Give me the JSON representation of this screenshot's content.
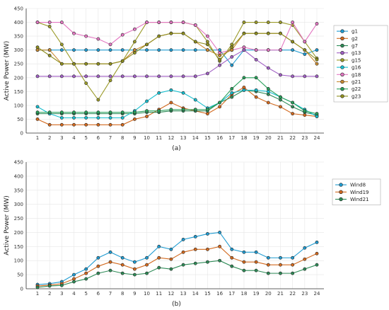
{
  "chart_data": [
    {
      "type": "line",
      "caption": "(a)",
      "title": "",
      "xlabel": "",
      "ylabel": "Active Power (MW)",
      "x": [
        1,
        2,
        3,
        4,
        5,
        6,
        7,
        8,
        9,
        10,
        11,
        12,
        13,
        14,
        15,
        16,
        17,
        18,
        19,
        20,
        21,
        22,
        23,
        24
      ],
      "ylim": [
        0,
        450
      ],
      "yticks": [
        0,
        50,
        100,
        150,
        200,
        250,
        300,
        350,
        400,
        450
      ],
      "grid": true,
      "legend_position": "top-right",
      "series": [
        {
          "name": "g1",
          "color": "#1f9bd1",
          "values": [
            300,
            300,
            300,
            300,
            300,
            300,
            300,
            300,
            300,
            300,
            300,
            300,
            300,
            300,
            300,
            300,
            245,
            300,
            300,
            300,
            300,
            300,
            285,
            300
          ]
        },
        {
          "name": "g2",
          "color": "#d2691e",
          "values": [
            50,
            30,
            30,
            30,
            30,
            30,
            30,
            30,
            50,
            60,
            85,
            110,
            90,
            80,
            70,
            95,
            140,
            165,
            130,
            110,
            95,
            70,
            65,
            60
          ]
        },
        {
          "name": "g7",
          "color": "#2e8b57",
          "values": [
            70,
            70,
            70,
            70,
            70,
            70,
            70,
            70,
            70,
            75,
            75,
            80,
            80,
            80,
            80,
            110,
            130,
            155,
            150,
            140,
            120,
            95,
            75,
            65
          ]
        },
        {
          "name": "g13",
          "color": "#a05fc4",
          "values": [
            205,
            205,
            205,
            205,
            205,
            205,
            205,
            205,
            205,
            205,
            205,
            205,
            205,
            205,
            215,
            245,
            275,
            300,
            265,
            235,
            210,
            205,
            205,
            205
          ]
        },
        {
          "name": "g15",
          "color": "#9b9b2a",
          "values": [
            400,
            385,
            320,
            250,
            180,
            120,
            190,
            260,
            330,
            400,
            400,
            400,
            400,
            390,
            330,
            260,
            320,
            400,
            400,
            400,
            400,
            390,
            330,
            270
          ]
        },
        {
          "name": "g16",
          "color": "#17becf",
          "values": [
            95,
            70,
            55,
            55,
            55,
            55,
            55,
            55,
            80,
            115,
            145,
            155,
            145,
            120,
            90,
            110,
            145,
            155,
            155,
            150,
            130,
            110,
            85,
            60
          ]
        },
        {
          "name": "g18",
          "color": "#e377c2",
          "values": [
            400,
            400,
            400,
            360,
            350,
            340,
            320,
            355,
            375,
            400,
            400,
            400,
            400,
            390,
            350,
            290,
            300,
            310,
            300,
            300,
            300,
            400,
            330,
            395
          ]
        },
        {
          "name": "g21",
          "color": "#c88a32",
          "values": [
            300,
            300,
            250,
            250,
            250,
            250,
            250,
            260,
            300,
            320,
            350,
            360,
            360,
            330,
            300,
            280,
            300,
            360,
            360,
            360,
            360,
            330,
            300,
            250
          ]
        },
        {
          "name": "g22",
          "color": "#27a05a",
          "values": [
            75,
            75,
            75,
            75,
            75,
            75,
            75,
            75,
            75,
            80,
            80,
            85,
            85,
            85,
            85,
            110,
            160,
            200,
            200,
            160,
            130,
            110,
            80,
            70
          ]
        },
        {
          "name": "g23",
          "color": "#8f8f1f",
          "values": [
            310,
            280,
            250,
            250,
            250,
            250,
            250,
            260,
            290,
            320,
            350,
            360,
            360,
            330,
            320,
            265,
            310,
            360,
            360,
            360,
            360,
            330,
            300,
            265
          ]
        }
      ]
    },
    {
      "type": "line",
      "caption": "(b)",
      "title": "",
      "xlabel": "",
      "ylabel": "Active Power (MW)",
      "x": [
        1,
        2,
        3,
        4,
        5,
        6,
        7,
        8,
        9,
        10,
        11,
        12,
        13,
        14,
        15,
        16,
        17,
        18,
        19,
        20,
        21,
        22,
        23,
        24
      ],
      "ylim": [
        0,
        450
      ],
      "yticks": [
        0,
        50,
        100,
        150,
        200,
        250,
        300,
        350,
        400,
        450
      ],
      "grid": true,
      "legend_position": "top-right",
      "series": [
        {
          "name": "Wind8",
          "color": "#1f9bd1",
          "values": [
            15,
            18,
            25,
            50,
            70,
            110,
            130,
            110,
            95,
            110,
            150,
            140,
            175,
            185,
            195,
            200,
            140,
            130,
            130,
            110,
            110,
            110,
            145,
            165
          ]
        },
        {
          "name": "Wind19",
          "color": "#d2691e",
          "values": [
            10,
            13,
            18,
            35,
            55,
            80,
            95,
            85,
            70,
            85,
            110,
            105,
            130,
            140,
            140,
            150,
            110,
            95,
            95,
            85,
            85,
            85,
            105,
            125
          ]
        },
        {
          "name": "Wind21",
          "color": "#2e8b57",
          "values": [
            5,
            10,
            12,
            25,
            35,
            55,
            65,
            55,
            50,
            55,
            75,
            70,
            85,
            90,
            95,
            100,
            80,
            65,
            65,
            55,
            55,
            55,
            70,
            85
          ]
        }
      ]
    }
  ]
}
